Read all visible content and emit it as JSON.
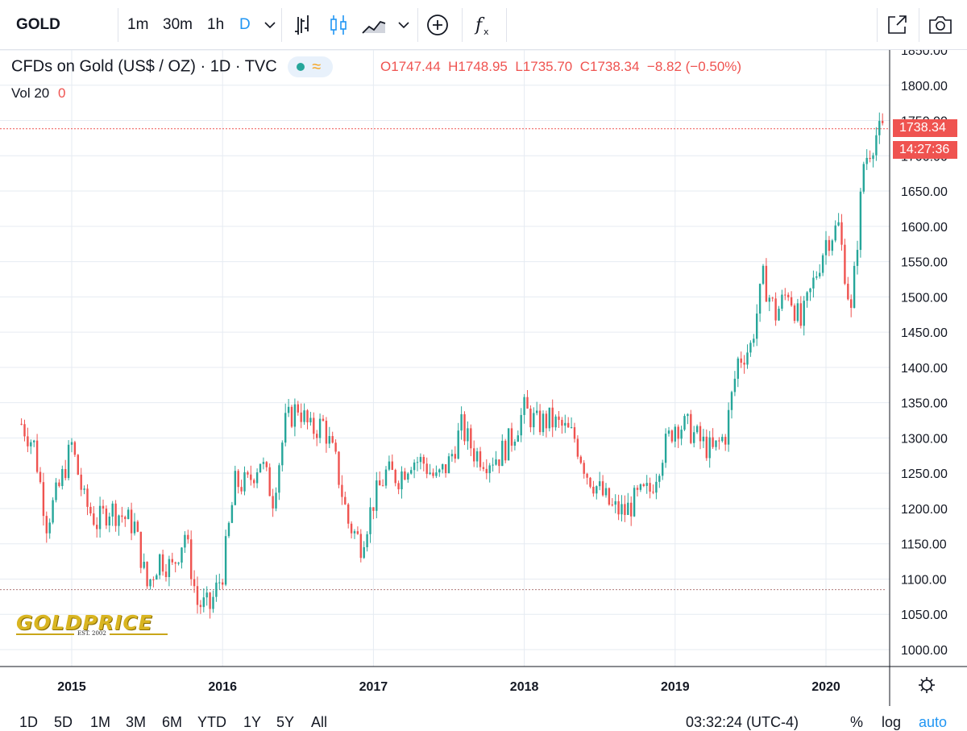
{
  "toolbar": {
    "symbol": "GOLD",
    "intervals": [
      "1m",
      "30m",
      "1h",
      "D"
    ],
    "active_interval": "D",
    "accent_color": "#2196f3",
    "icons": [
      "chevron-down-icon",
      "bar-chart-icon",
      "candlestick-icon",
      "area-chart-icon",
      "chevron-down-icon",
      "add-circle-icon",
      "function-icon",
      "expand-icon",
      "camera-icon"
    ]
  },
  "legend": {
    "title": "CFDs on Gold (US$ / OZ) · 1D · TVC",
    "open_label": "O",
    "open": "1747.44",
    "high_label": "H",
    "high": "1748.95",
    "low_label": "L",
    "low": "1735.70",
    "close_label": "C",
    "close": "1738.34",
    "change": "−8.82 (−0.50%)",
    "vol_label": "Vol 20",
    "vol_value": "0"
  },
  "price_labels": {
    "last_price": "1738.34",
    "countdown": "14:27:36"
  },
  "logo": {
    "text": "GOLDPRICE",
    "est": "EST. 2002"
  },
  "bottom_bar": {
    "ranges": [
      "1D",
      "5D",
      "1M",
      "3M",
      "6M",
      "YTD",
      "1Y",
      "5Y",
      "All"
    ],
    "clock": "03:32:24 (UTC-4)",
    "percent": "%",
    "log": "log",
    "auto": "auto"
  },
  "colors": {
    "up": "#26a69a",
    "down": "#ef5350",
    "grid": "#e6ebf2",
    "last_price_line": "#ef5350",
    "dotted_level": "#b07a7a"
  },
  "chart_data": {
    "type": "candlestick",
    "title": "CFDs on Gold (US$ / OZ)",
    "interval": "1D",
    "ylim": [
      990,
      1855
    ],
    "y_ticks": [
      "1850.00",
      "1800.00",
      "1750.00",
      "1700.00",
      "1650.00",
      "1600.00",
      "1550.00",
      "1500.00",
      "1450.00",
      "1400.00",
      "1350.00",
      "1300.00",
      "1250.00",
      "1200.00",
      "1150.00",
      "1100.00",
      "1050.00",
      "1000.00"
    ],
    "x_ticks": [
      "2015",
      "2016",
      "2017",
      "2018",
      "2019",
      "2020"
    ],
    "x_range": [
      "2014-09",
      "2020-06"
    ],
    "last_price": 1738.34,
    "dotted_level": 1085,
    "series": [
      {
        "date": "2014-09",
        "price": 1320
      },
      {
        "date": "2014-10",
        "price": 1290
      },
      {
        "date": "2014-11",
        "price": 1180
      },
      {
        "date": "2014-12",
        "price": 1230
      },
      {
        "date": "2015-01",
        "price": 1290
      },
      {
        "date": "2015-02",
        "price": 1210
      },
      {
        "date": "2015-03",
        "price": 1180
      },
      {
        "date": "2015-04",
        "price": 1200
      },
      {
        "date": "2015-05",
        "price": 1190
      },
      {
        "date": "2015-06",
        "price": 1175
      },
      {
        "date": "2015-07",
        "price": 1090
      },
      {
        "date": "2015-08",
        "price": 1130
      },
      {
        "date": "2015-09",
        "price": 1115
      },
      {
        "date": "2015-10",
        "price": 1165
      },
      {
        "date": "2015-11",
        "price": 1065
      },
      {
        "date": "2015-12",
        "price": 1060
      },
      {
        "date": "2016-01",
        "price": 1110
      },
      {
        "date": "2016-02",
        "price": 1235
      },
      {
        "date": "2016-03",
        "price": 1235
      },
      {
        "date": "2016-04",
        "price": 1270
      },
      {
        "date": "2016-05",
        "price": 1215
      },
      {
        "date": "2016-06",
        "price": 1320
      },
      {
        "date": "2016-07",
        "price": 1345
      },
      {
        "date": "2016-08",
        "price": 1310
      },
      {
        "date": "2016-09",
        "price": 1320
      },
      {
        "date": "2016-10",
        "price": 1265
      },
      {
        "date": "2016-11",
        "price": 1180
      },
      {
        "date": "2016-12",
        "price": 1150
      },
      {
        "date": "2017-01",
        "price": 1210
      },
      {
        "date": "2017-02",
        "price": 1250
      },
      {
        "date": "2017-03",
        "price": 1245
      },
      {
        "date": "2017-04",
        "price": 1270
      },
      {
        "date": "2017-05",
        "price": 1265
      },
      {
        "date": "2017-06",
        "price": 1240
      },
      {
        "date": "2017-07",
        "price": 1265
      },
      {
        "date": "2017-08",
        "price": 1315
      },
      {
        "date": "2017-09",
        "price": 1280
      },
      {
        "date": "2017-10",
        "price": 1270
      },
      {
        "date": "2017-11",
        "price": 1275
      },
      {
        "date": "2017-12",
        "price": 1300
      },
      {
        "date": "2018-01",
        "price": 1340
      },
      {
        "date": "2018-02",
        "price": 1320
      },
      {
        "date": "2018-03",
        "price": 1325
      },
      {
        "date": "2018-04",
        "price": 1315
      },
      {
        "date": "2018-05",
        "price": 1300
      },
      {
        "date": "2018-06",
        "price": 1250
      },
      {
        "date": "2018-07",
        "price": 1225
      },
      {
        "date": "2018-08",
        "price": 1200
      },
      {
        "date": "2018-09",
        "price": 1195
      },
      {
        "date": "2018-10",
        "price": 1215
      },
      {
        "date": "2018-11",
        "price": 1225
      },
      {
        "date": "2018-12",
        "price": 1280
      },
      {
        "date": "2019-01",
        "price": 1320
      },
      {
        "date": "2019-02",
        "price": 1315
      },
      {
        "date": "2019-03",
        "price": 1295
      },
      {
        "date": "2019-04",
        "price": 1280
      },
      {
        "date": "2019-05",
        "price": 1305
      },
      {
        "date": "2019-06",
        "price": 1410
      },
      {
        "date": "2019-07",
        "price": 1430
      },
      {
        "date": "2019-08",
        "price": 1525
      },
      {
        "date": "2019-09",
        "price": 1475
      },
      {
        "date": "2019-10",
        "price": 1510
      },
      {
        "date": "2019-11",
        "price": 1460
      },
      {
        "date": "2019-12",
        "price": 1520
      },
      {
        "date": "2020-01",
        "price": 1580
      },
      {
        "date": "2020-02",
        "price": 1600
      },
      {
        "date": "2020-03",
        "price": 1475
      },
      {
        "date": "2020-04",
        "price": 1690
      },
      {
        "date": "2020-05",
        "price": 1730
      },
      {
        "date": "2020-06",
        "price": 1738
      }
    ]
  }
}
